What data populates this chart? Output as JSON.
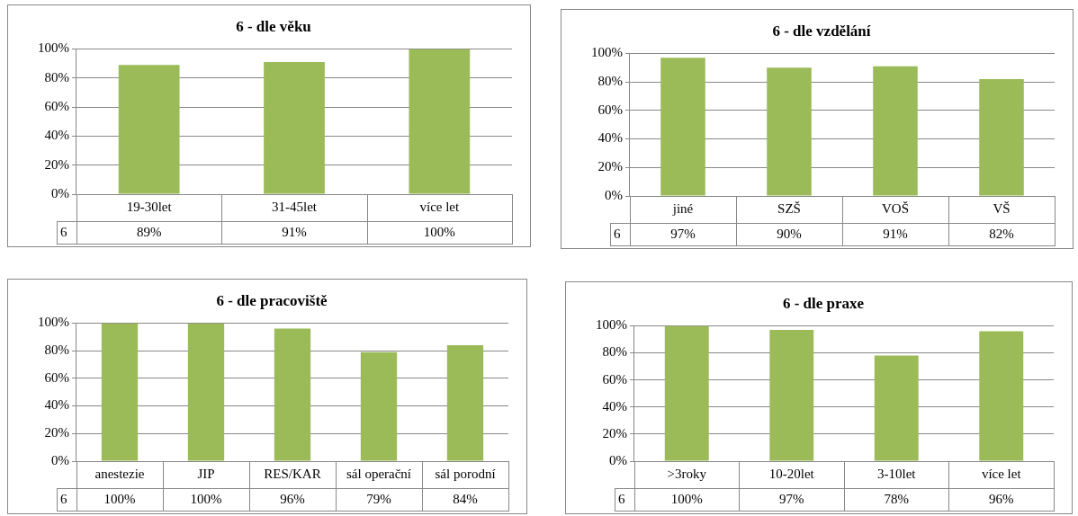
{
  "chart_data": [
    {
      "type": "bar",
      "title": "6 - dle věku",
      "categories": [
        "19-30let",
        "31-45let",
        "více let"
      ],
      "series": [
        {
          "name": "6",
          "color": "#9bbb59",
          "values": [
            89,
            91,
            100
          ],
          "value_labels": [
            "89%",
            "91%",
            "100%"
          ]
        }
      ],
      "ylim": [
        0,
        100
      ],
      "yticks": [
        {
          "value": 0,
          "label": "0%"
        },
        {
          "value": 20,
          "label": "20%"
        },
        {
          "value": 40,
          "label": "40%"
        },
        {
          "value": 60,
          "label": "60%"
        },
        {
          "value": 80,
          "label": "80%"
        },
        {
          "value": 100,
          "label": "100%"
        }
      ],
      "grid": "y"
    },
    {
      "type": "bar",
      "title": "6 - dle vzdělání",
      "categories": [
        "jiné",
        "SZŠ",
        "VOŠ",
        "VŠ"
      ],
      "series": [
        {
          "name": "6",
          "color": "#9bbb59",
          "values": [
            97,
            90,
            91,
            82
          ],
          "value_labels": [
            "97%",
            "90%",
            "91%",
            "82%"
          ]
        }
      ],
      "ylim": [
        0,
        100
      ],
      "yticks": [
        {
          "value": 0,
          "label": "0%"
        },
        {
          "value": 20,
          "label": "20%"
        },
        {
          "value": 40,
          "label": "40%"
        },
        {
          "value": 60,
          "label": "60%"
        },
        {
          "value": 80,
          "label": "80%"
        },
        {
          "value": 100,
          "label": "100%"
        }
      ],
      "grid": "y"
    },
    {
      "type": "bar",
      "title": "6 - dle pracoviště",
      "categories": [
        "anestezie",
        "JIP",
        "RES/KAR",
        "sál operační",
        "sál porodní"
      ],
      "series": [
        {
          "name": "6",
          "color": "#9bbb59",
          "values": [
            100,
            100,
            96,
            79,
            84
          ],
          "value_labels": [
            "100%",
            "100%",
            "96%",
            "79%",
            "84%"
          ]
        }
      ],
      "ylim": [
        0,
        100
      ],
      "yticks": [
        {
          "value": 0,
          "label": "0%"
        },
        {
          "value": 20,
          "label": "20%"
        },
        {
          "value": 40,
          "label": "40%"
        },
        {
          "value": 60,
          "label": "60%"
        },
        {
          "value": 80,
          "label": "80%"
        },
        {
          "value": 100,
          "label": "100%"
        }
      ],
      "grid": "y"
    },
    {
      "type": "bar",
      "title": "6 - dle praxe",
      "categories": [
        ">3roky",
        "10-20let",
        "3-10let",
        "více let"
      ],
      "series": [
        {
          "name": "6",
          "color": "#9bbb59",
          "values": [
            100,
            97,
            78,
            96
          ],
          "value_labels": [
            "100%",
            "97%",
            "78%",
            "96%"
          ]
        }
      ],
      "ylim": [
        0,
        100
      ],
      "yticks": [
        {
          "value": 0,
          "label": "0%"
        },
        {
          "value": 20,
          "label": "20%"
        },
        {
          "value": 40,
          "label": "40%"
        },
        {
          "value": 60,
          "label": "60%"
        },
        {
          "value": 80,
          "label": "80%"
        },
        {
          "value": 100,
          "label": "100%"
        }
      ],
      "grid": "y"
    }
  ]
}
